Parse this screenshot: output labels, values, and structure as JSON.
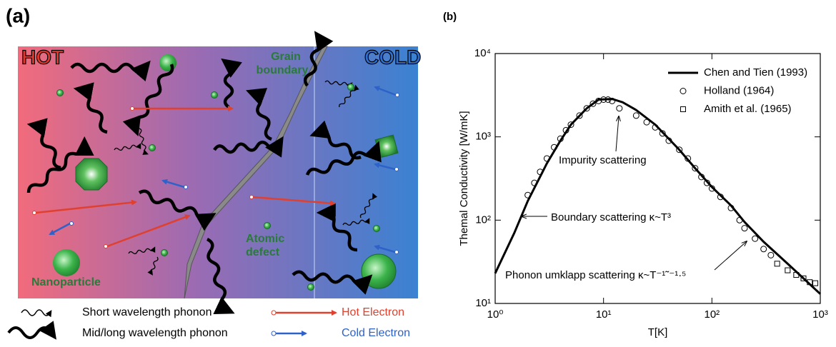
{
  "diagram": {
    "label": "(a)",
    "hot": "HOT",
    "cold": "COLD",
    "grain_boundary": [
      "Grain",
      "boundary"
    ],
    "atomic_defect": [
      "Atomic",
      "defect"
    ],
    "nanoparticle": "Nanoparticle",
    "legend": {
      "short_phonon": "Short wavelength phonon",
      "long_phonon": "Mid/long wavelength phonon",
      "hot_electron": "Hot Electron",
      "cold_electron": "Cold Electron"
    }
  },
  "chart_data": {
    "type": "line",
    "label": "(b)",
    "xlabel": "T[K]",
    "ylabel": "Themal Conductivity [W/mK]",
    "log_x": true,
    "log_y": true,
    "xlim": [
      1,
      1000
    ],
    "ylim": [
      10,
      10000
    ],
    "xticks": [
      {
        "value": 1,
        "label": "10⁰"
      },
      {
        "value": 10,
        "label": "10¹"
      },
      {
        "value": 100,
        "label": "10²"
      },
      {
        "value": 1000,
        "label": "10³"
      }
    ],
    "yticks": [
      {
        "value": 10,
        "label": "10¹"
      },
      {
        "value": 100,
        "label": "10²"
      },
      {
        "value": 1000,
        "label": "10³"
      },
      {
        "value": 10000,
        "label": "10⁴"
      }
    ],
    "legend": "upper right",
    "series": [
      {
        "name": "Chen and Tien (1993)",
        "marker": "line",
        "color": "#000000",
        "x": [
          1,
          1.5,
          2,
          3,
          4,
          5,
          7,
          9,
          12,
          15,
          20,
          30,
          50,
          70,
          100,
          150,
          200,
          300,
          500,
          700,
          1000
        ],
        "values": [
          23,
          70,
          170,
          480,
          900,
          1400,
          2200,
          2800,
          2850,
          2600,
          2100,
          1400,
          700,
          420,
          250,
          150,
          95,
          55,
          30,
          20,
          13
        ]
      },
      {
        "name": "Holland (1964)",
        "marker": "circle",
        "color": "#000000",
        "x": [
          2,
          2.3,
          2.6,
          3,
          3.5,
          4,
          4.5,
          5,
          6,
          7,
          8,
          9,
          10,
          11,
          12,
          14,
          20,
          25,
          30,
          35,
          40,
          50,
          60,
          70,
          80,
          90,
          100,
          120,
          150,
          180,
          200,
          250,
          300,
          350
        ],
        "values": [
          200,
          280,
          380,
          550,
          750,
          950,
          1200,
          1400,
          1800,
          2200,
          2500,
          2700,
          2800,
          2800,
          2700,
          2200,
          1800,
          1500,
          1300,
          1100,
          900,
          700,
          550,
          420,
          330,
          280,
          240,
          190,
          140,
          100,
          80,
          60,
          45,
          38
        ]
      },
      {
        "name": "Amith et al. (1965)",
        "marker": "square",
        "color": "#000000",
        "x": [
          400,
          500,
          600,
          700,
          800,
          900
        ],
        "values": [
          30,
          25,
          22,
          20,
          18,
          17.5
        ]
      }
    ],
    "annotations": [
      "Impurity scattering",
      "Boundary scattering κ~T³",
      "Phonon umklapp scattering κ~T⁻¹˜⁻¹·⁵"
    ]
  }
}
